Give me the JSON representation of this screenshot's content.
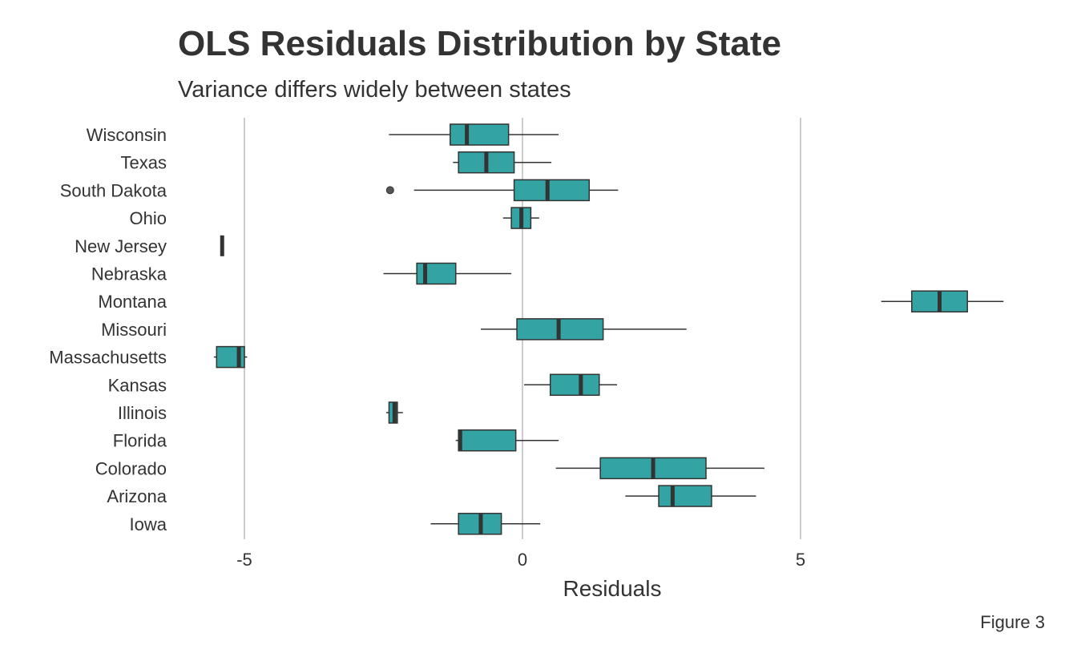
{
  "chart_data": {
    "type": "boxplot",
    "title": "OLS Residuals Distribution by State",
    "subtitle": "Variance differs widely between states",
    "caption": "Figure 3",
    "xlabel": "Residuals",
    "ylabel": "",
    "xlim": [
      -6.3,
      9.2
    ],
    "x_ticks": [
      -5,
      0,
      5
    ],
    "x_tick_labels": [
      "-5",
      "0",
      "5"
    ],
    "grid": "vertical major lines only",
    "colors": {
      "box_fill": "#33A3A3",
      "box_stroke": "#333333",
      "grid": "#CCCCCC",
      "text": "#333333"
    },
    "categories": [
      "Wisconsin",
      "Texas",
      "South Dakota",
      "Ohio",
      "New Jersey",
      "Nebraska",
      "Montana",
      "Missouri",
      "Massachusetts",
      "Kansas",
      "Illinois",
      "Florida",
      "Colorado",
      "Arizona",
      "Iowa"
    ],
    "boxes": [
      {
        "state": "Wisconsin",
        "whisker_low": -2.4,
        "q1": -1.3,
        "median": -1.0,
        "q3": -0.25,
        "whisker_high": 0.65,
        "outliers": []
      },
      {
        "state": "Texas",
        "whisker_low": -1.25,
        "q1": -1.15,
        "median": -0.65,
        "q3": -0.15,
        "whisker_high": 0.52,
        "outliers": []
      },
      {
        "state": "South Dakota",
        "whisker_low": -1.95,
        "q1": -0.15,
        "median": 0.45,
        "q3": 1.2,
        "whisker_high": 1.72,
        "outliers": [
          -2.38
        ]
      },
      {
        "state": "Ohio",
        "whisker_low": -0.35,
        "q1": -0.2,
        "median": -0.02,
        "q3": 0.15,
        "whisker_high": 0.3,
        "outliers": []
      },
      {
        "state": "New Jersey",
        "whisker_low": -5.4,
        "q1": -5.4,
        "median": -5.4,
        "q3": -5.4,
        "whisker_high": -5.4,
        "outliers": []
      },
      {
        "state": "Nebraska",
        "whisker_low": -2.5,
        "q1": -1.9,
        "median": -1.75,
        "q3": -1.2,
        "whisker_high": -0.2,
        "outliers": []
      },
      {
        "state": "Montana",
        "whisker_low": 6.45,
        "q1": 7.0,
        "median": 7.5,
        "q3": 8.0,
        "whisker_high": 8.65,
        "outliers": []
      },
      {
        "state": "Missouri",
        "whisker_low": -0.75,
        "q1": -0.1,
        "median": 0.65,
        "q3": 1.45,
        "whisker_high": 2.95,
        "outliers": []
      },
      {
        "state": "Massachusetts",
        "whisker_low": -5.55,
        "q1": -5.5,
        "median": -5.1,
        "q3": -5.0,
        "whisker_high": -4.95,
        "outliers": []
      },
      {
        "state": "Kansas",
        "whisker_low": 0.03,
        "q1": 0.5,
        "median": 1.05,
        "q3": 1.38,
        "whisker_high": 1.7,
        "outliers": []
      },
      {
        "state": "Illinois",
        "whisker_low": -2.45,
        "q1": -2.4,
        "median": -2.3,
        "q3": -2.25,
        "whisker_high": -2.15,
        "outliers": []
      },
      {
        "state": "Florida",
        "whisker_low": -1.2,
        "q1": -1.15,
        "median": -1.12,
        "q3": -0.12,
        "whisker_high": 0.65,
        "outliers": []
      },
      {
        "state": "Colorado",
        "whisker_low": 0.6,
        "q1": 1.4,
        "median": 2.35,
        "q3": 3.3,
        "whisker_high": 4.35,
        "outliers": []
      },
      {
        "state": "Arizona",
        "whisker_low": 1.85,
        "q1": 2.45,
        "median": 2.7,
        "q3": 3.4,
        "whisker_high": 4.2,
        "outliers": []
      },
      {
        "state": "Iowa",
        "whisker_low": -1.65,
        "q1": -1.15,
        "median": -0.75,
        "q3": -0.38,
        "whisker_high": 0.32,
        "outliers": []
      }
    ]
  }
}
